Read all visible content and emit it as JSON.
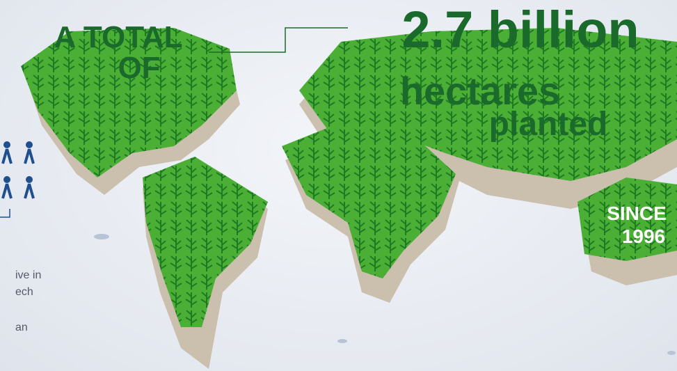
{
  "headline": {
    "lead": [
      "A TOTAL",
      "OF"
    ],
    "figure": "2.7 billion",
    "unit": [
      "hectares",
      "planted"
    ],
    "since": [
      "SINCE",
      "1996"
    ]
  },
  "sidebar": {
    "lines": [
      "ive in",
      "ech",
      "an"
    ]
  }
}
